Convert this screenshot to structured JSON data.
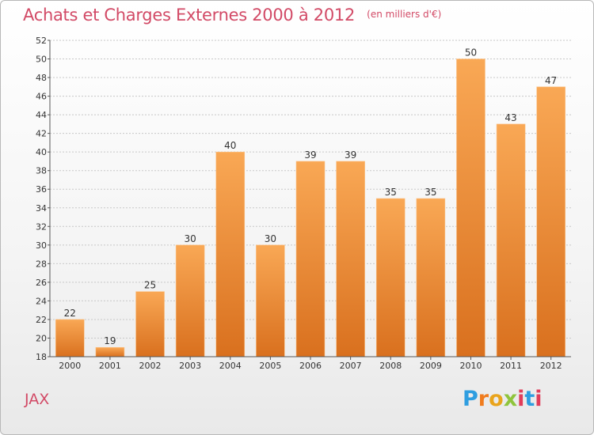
{
  "header": {
    "title": "Achats et Charges Externes 2000 à 2012",
    "subtitle": "(en milliers d'€)"
  },
  "footer": {
    "commune": "JAX",
    "logo_text": "Proxiti",
    "logo_letters": [
      "P",
      "r",
      "o",
      "x",
      "i",
      "t",
      "i"
    ],
    "logo_colors": [
      "#2f9ee0",
      "#f07c1e",
      "#e9a41c",
      "#8fc43c",
      "#e13d5a",
      "#2f9ee0",
      "#e13d5a"
    ]
  },
  "colors": {
    "bar_light": "#f9a855",
    "bar_dark": "#d9701e",
    "title": "#d24a66",
    "grid": "#c8c8c8"
  },
  "chart_data": {
    "type": "bar",
    "categories": [
      "2000",
      "2001",
      "2002",
      "2003",
      "2004",
      "2005",
      "2006",
      "2007",
      "2008",
      "2009",
      "2010",
      "2011",
      "2012"
    ],
    "values": [
      22,
      19,
      25,
      30,
      40,
      30,
      39,
      39,
      35,
      35,
      50,
      43,
      47
    ],
    "ylim": [
      18,
      52
    ],
    "yticks": [
      18,
      20,
      22,
      24,
      26,
      28,
      30,
      32,
      34,
      36,
      38,
      40,
      42,
      44,
      46,
      48,
      50,
      52
    ],
    "data_labels": true,
    "grid": "horizontal"
  }
}
